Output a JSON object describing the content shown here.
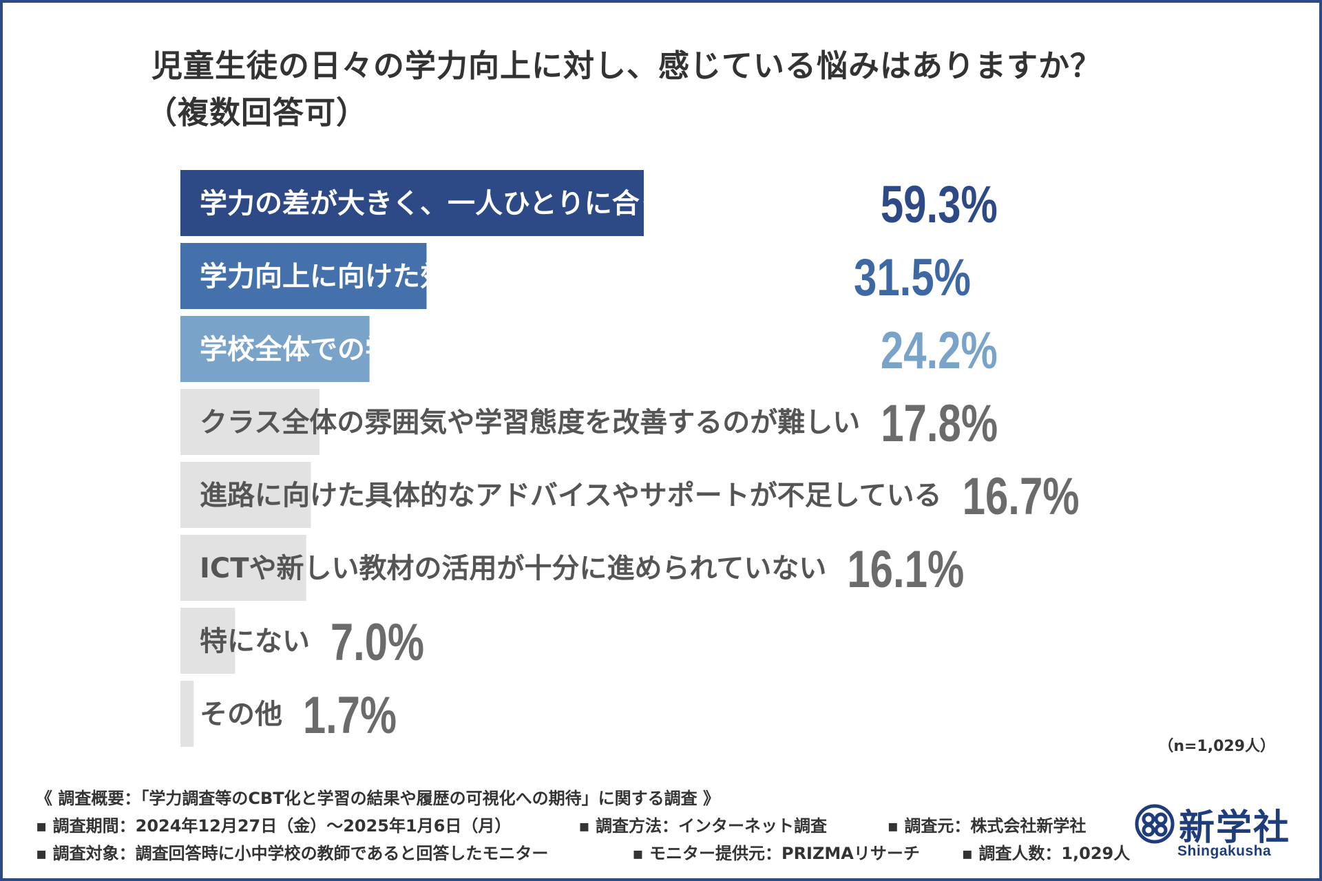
{
  "title": {
    "line1": "児童生徒の日々の学力向上に対し、感じている悩みはありますか？",
    "line2": "（複数回答可）"
  },
  "colors": {
    "frame": "#2d4a86",
    "dark_navy": "#2d4a86",
    "mid_blue": "#4470ab",
    "light_blue": "#7aa3c9",
    "gray_bar": "#e2e2e2",
    "gray_text": "#555555",
    "gray_value": "#6b6b6b",
    "navy_value": "#2d4a86",
    "mid_value": "#3d68a3",
    "light_value": "#7aa3c9"
  },
  "chart_data": {
    "type": "bar",
    "orientation": "horizontal",
    "categories": [
      "学力の差が大きく、一人ひとりに合った指導が難しい",
      "学力向上に向けた効果的な指導方法が見つからない",
      "学校全体での学力向上の取り組みが統一されていない",
      "クラス全体の雰囲気や学習態度を改善するのが難しい",
      "進路に向けた具体的なアドバイスやサポートが不足している",
      "ICTや新しい教材の活用が十分に進められていない",
      "特にない",
      "その他"
    ],
    "values": [
      59.3,
      31.5,
      24.2,
      17.8,
      16.7,
      16.1,
      7.0,
      1.7
    ],
    "value_labels": [
      "59.3%",
      "31.5%",
      "24.2%",
      "17.8%",
      "16.7%",
      "16.1%",
      "7.0%",
      "1.7%"
    ],
    "bar_colors": [
      "#2d4a86",
      "#4470ab",
      "#7aa3c9",
      "#e2e2e2",
      "#e2e2e2",
      "#e2e2e2",
      "#e2e2e2",
      "#e2e2e2"
    ],
    "label_colors": [
      "#ffffff",
      "#ffffff",
      "#ffffff",
      "#555555",
      "#555555",
      "#555555",
      "#555555",
      "#555555"
    ],
    "value_colors": [
      "#2d4a86",
      "#3d68a3",
      "#7aa3c9",
      "#6b6b6b",
      "#6b6b6b",
      "#6b6b6b",
      "#6b6b6b",
      "#6b6b6b"
    ],
    "xlim": [
      0,
      100
    ],
    "grid": false,
    "legend": "none",
    "title": "児童生徒の日々の学力向上に対し、感じている悩みはありますか？（複数回答可）",
    "xlabel": "",
    "ylabel": ""
  },
  "sample_note": "（n=1,029人）",
  "footer": {
    "overview": "《 調査概要：「学力調査等のCBT化と学習の結果や履歴の可視化への期待」に関する調査 》",
    "period": "▪ 調査期間：2024年12月27日（金）〜2025年1月6日（月）",
    "method": "▪ 調査方法：インターネット調査",
    "source": "▪ 調査元：株式会社新学社",
    "target": "▪ 調査対象：調査回答時に小中学校の教師であると回答したモニター",
    "provider": "▪ モニター提供元：PRIZMAリサーチ",
    "count": "▪ 調査人数：1,029人"
  },
  "logo": {
    "name": "新学社",
    "roman": "Shingakusha"
  }
}
